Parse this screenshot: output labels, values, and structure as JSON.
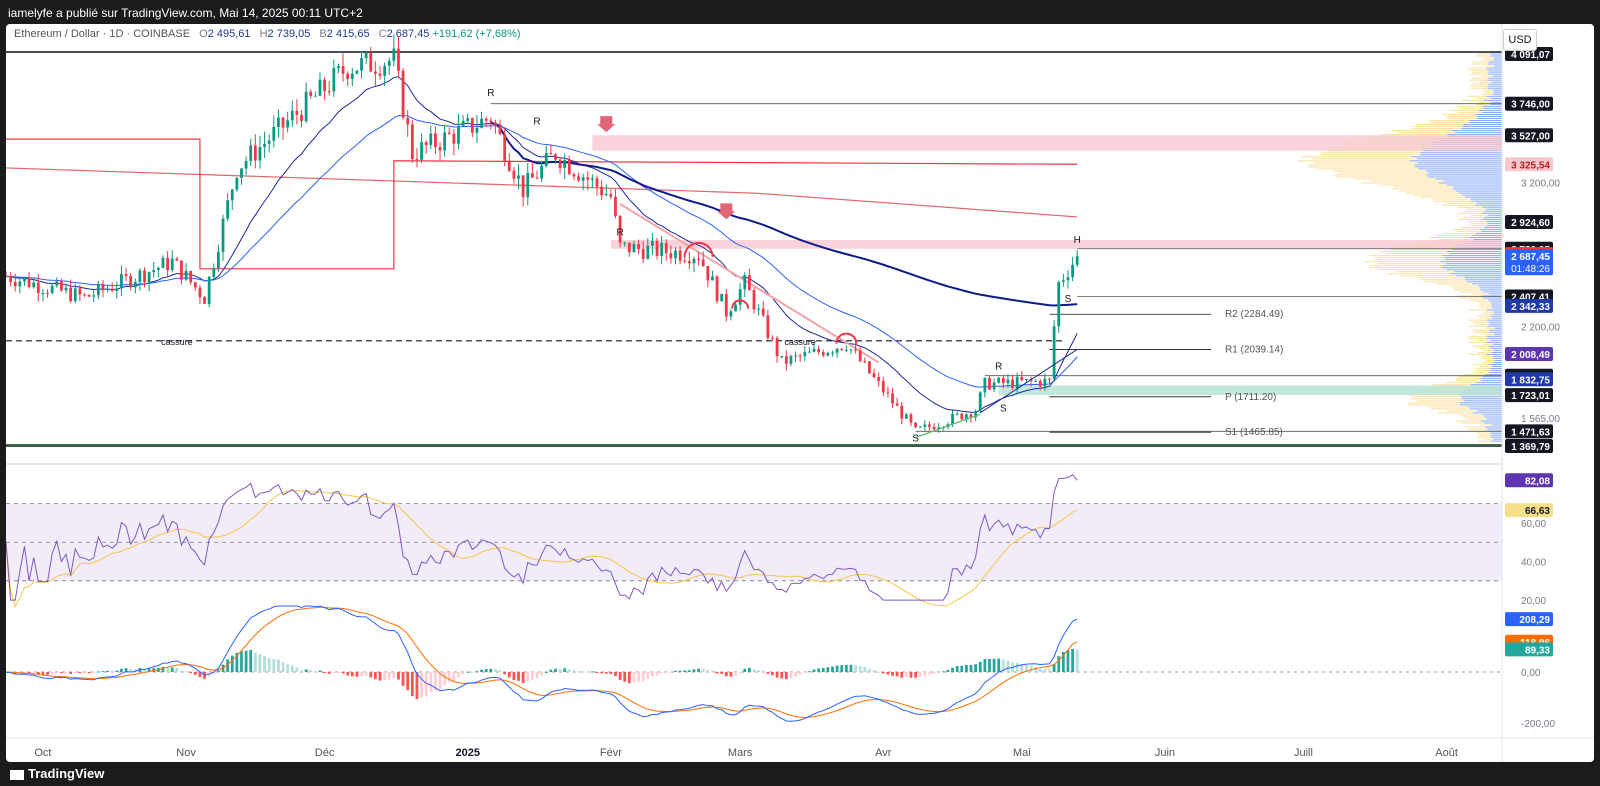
{
  "header": {
    "publisher_line": "iamelyfe a publié sur TradingView.com, Mai 14, 2025 00:11 UTC+2"
  },
  "legend": {
    "symbol": "Ethereum / Dollar · 1D · COINBASE",
    "open_label": "O",
    "open": "2 495,61",
    "high_label": "H",
    "high": "2 739,05",
    "low_label": "B",
    "low": "2 415,65",
    "close_label": "C",
    "close": "2 687,45",
    "change": "+191,62 (+7,68%)"
  },
  "currency_button": "USD",
  "footer": {
    "brand": "TradingView"
  },
  "colors": {
    "up": "#089981",
    "down": "#f23645",
    "ema_dark": "#1e2a9a",
    "ema_blue": "#2962ff",
    "sma_red": "#e06666",
    "rsi": "#7e57c2",
    "rsi_ma": "#f7c548",
    "macd": "#2962ff",
    "signal": "#ff6d00"
  },
  "chart_data": [
    {
      "type": "candlestick",
      "title": "Ethereum / Dollar · 1D · COINBASE",
      "x_axis_ticks": [
        "Oct",
        "Nov",
        "Déc",
        "2025",
        "Févr",
        "Mars",
        "Avr",
        "Mai",
        "Juin",
        "Juill",
        "Août"
      ],
      "x_range": [
        "2024-09-23",
        "2025-08-13"
      ],
      "ylim": [
        1369.79,
        4091.07
      ],
      "price_axis_badges": [
        {
          "value": "4 091,07",
          "style": "dark"
        },
        {
          "value": "3 746,00",
          "style": "dark"
        },
        {
          "value": "3 527,00",
          "style": "dark"
        },
        {
          "value": "3 325,54",
          "style": "pink"
        },
        {
          "value": "2 924,60",
          "style": "dark"
        },
        {
          "value": "2 739,05",
          "style": "dark"
        },
        {
          "value": "2 702,01",
          "style": "red"
        },
        {
          "value": "2 687,45",
          "style": "blue",
          "sub": "01:48:26"
        },
        {
          "value": "2 407,41",
          "style": "dark"
        },
        {
          "value": "2 342,33",
          "style": "navy"
        },
        {
          "value": "2 008,49",
          "style": "purple"
        },
        {
          "value": "1 857,85",
          "style": "dark"
        },
        {
          "value": "1 832,75",
          "style": "navy"
        },
        {
          "value": "1 723,01",
          "style": "dark"
        },
        {
          "value": "1 471,63",
          "style": "dark"
        },
        {
          "value": "1 369,79",
          "style": "dark"
        }
      ],
      "price_axis_labels": [
        "3 200,00",
        "2 200,00",
        "1 565,00"
      ],
      "pivot_levels": [
        {
          "label": "R2 (2284.49)",
          "value": 2284.49
        },
        {
          "label": "R1 (2039.14)",
          "value": 2039.14
        },
        {
          "label": "P (1711.20)",
          "value": 1711.2
        },
        {
          "label": "S1 (1465.85)",
          "value": 1465.85
        }
      ],
      "annotations": [
        "cassure",
        "cassure",
        "R",
        "R",
        "R",
        "R",
        "S",
        "S",
        "S",
        "S",
        "H"
      ],
      "key_points": [
        {
          "date": "2024-09-23",
          "price": 2550
        },
        {
          "date": "2024-10-10",
          "price": 2400
        },
        {
          "date": "2024-10-29",
          "price": 2650
        },
        {
          "date": "2024-11-05",
          "price": 2400
        },
        {
          "date": "2024-11-12",
          "price": 3300
        },
        {
          "date": "2024-12-06",
          "price": 4000
        },
        {
          "date": "2024-12-16",
          "price": 4050
        },
        {
          "date": "2024-12-20",
          "price": 3400
        },
        {
          "date": "2025-01-06",
          "price": 3650
        },
        {
          "date": "2025-01-13",
          "price": 3150
        },
        {
          "date": "2025-01-20",
          "price": 3400
        },
        {
          "date": "2025-02-01",
          "price": 3100
        },
        {
          "date": "2025-02-03",
          "price": 2750
        },
        {
          "date": "2025-02-20",
          "price": 2700
        },
        {
          "date": "2025-02-26",
          "price": 2300
        },
        {
          "date": "2025-03-02",
          "price": 2500
        },
        {
          "date": "2025-03-10",
          "price": 1950
        },
        {
          "date": "2025-03-24",
          "price": 2080
        },
        {
          "date": "2025-04-08",
          "price": 1470
        },
        {
          "date": "2025-04-21",
          "price": 1620
        },
        {
          "date": "2025-04-23",
          "price": 1800
        },
        {
          "date": "2025-05-07",
          "price": 1820
        },
        {
          "date": "2025-05-08",
          "price": 2200
        },
        {
          "date": "2025-05-09",
          "price": 2500
        },
        {
          "date": "2025-05-13",
          "price": 2687.45
        }
      ]
    },
    {
      "type": "line",
      "name": "RSI",
      "yaxis_labels": [
        "60,00",
        "40,00",
        "20,00"
      ],
      "badges": [
        {
          "value": "82,08",
          "style": "purple"
        },
        {
          "value": "66,63",
          "style": "yellow"
        }
      ],
      "ylim": [
        18,
        90
      ],
      "bands": [
        30,
        50,
        70
      ],
      "last": {
        "rsi": 82.08,
        "ma": 66.63
      }
    },
    {
      "type": "line",
      "name": "MACD",
      "yaxis_labels": [
        "0,00",
        "-200,00"
      ],
      "badges": [
        {
          "value": "208,29",
          "style": "blue"
        },
        {
          "value": "118,96",
          "style": "orange"
        },
        {
          "value": "89,33",
          "style": "teal"
        }
      ],
      "ylim": [
        -260,
        260
      ],
      "last": {
        "macd": 208.29,
        "signal": 118.96,
        "histogram": 89.33
      }
    }
  ]
}
